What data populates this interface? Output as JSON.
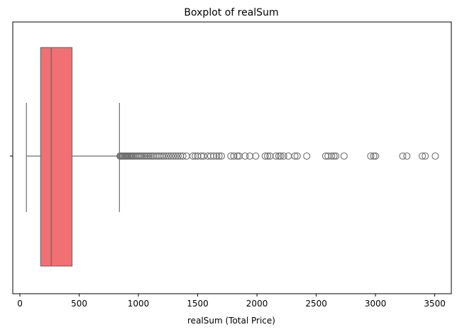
{
  "chart_data": {
    "type": "boxplot",
    "title": "Boxplot of realSum",
    "xlabel": "realSum (Total Price)",
    "ylabel": "",
    "xlim": [
      -60,
      3640
    ],
    "xticks": [
      0,
      500,
      1000,
      1500,
      2000,
      2500,
      3000,
      3500
    ],
    "orientation": "horizontal",
    "grid": false,
    "box_color": "#f07074",
    "line_color": "#6e6e6e",
    "series": [
      {
        "whisker_low": 55,
        "q1": 175,
        "median": 265,
        "q3": 440,
        "whisker_high": 840,
        "outliers": [
          845,
          852,
          860,
          868,
          876,
          885,
          893,
          902,
          910,
          920,
          930,
          940,
          950,
          962,
          975,
          988,
          1000,
          1012,
          1025,
          1040,
          1055,
          1070,
          1085,
          1100,
          1115,
          1130,
          1148,
          1165,
          1180,
          1198,
          1215,
          1235,
          1255,
          1275,
          1295,
          1315,
          1335,
          1355,
          1375,
          1405,
          1460,
          1480,
          1500,
          1530,
          1550,
          1585,
          1610,
          1635,
          1660,
          1680,
          1700,
          1780,
          1805,
          1835,
          1850,
          1900,
          1940,
          1990,
          2070,
          2090,
          2110,
          2160,
          2185,
          2200,
          2225,
          2265,
          2320,
          2340,
          2420,
          2580,
          2600,
          2630,
          2650,
          2665,
          2735,
          2960,
          2985,
          3000,
          3230,
          3265,
          3395,
          3420,
          3505
        ]
      }
    ]
  }
}
